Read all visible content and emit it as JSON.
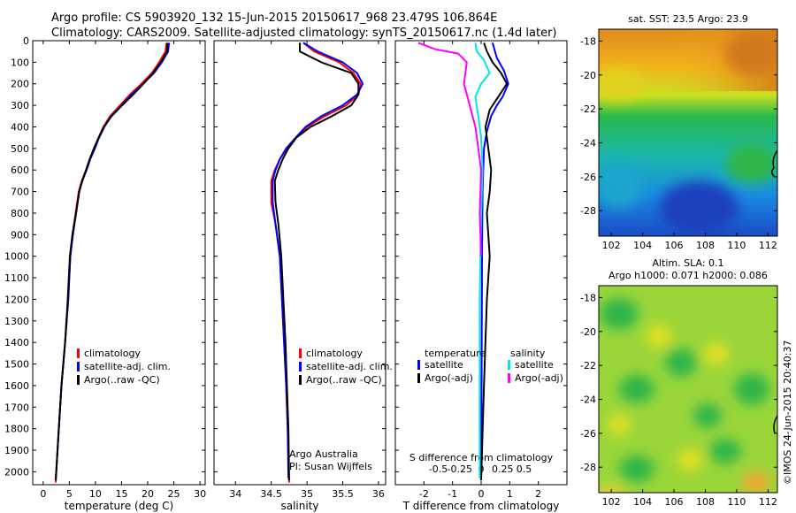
{
  "header": {
    "line1": "Argo profile: CS 5903920_132 15-Jun-2015 20150617_968 23.479S 106.864E",
    "line2": "Climatology: CARS2009. Satellite-adjusted climatology: synTS_20150617.nc (1.4d later)"
  },
  "colors": {
    "climatology": "#ff0000",
    "satellite": "#0000ff",
    "argo": "#000000",
    "sal_satellite": "#00e5e5",
    "sal_argo": "#ff00ff"
  },
  "chart_data": [
    {
      "id": "temp",
      "type": "line",
      "xlabel": "temperature (deg C)",
      "ylabel": "",
      "xlim": [
        -2,
        31
      ],
      "ylim": [
        0,
        2060
      ],
      "y_inverted": true,
      "x_ticks": [
        "0",
        "5",
        "10",
        "15",
        "20",
        "25",
        "30"
      ],
      "x_tick_values": [
        0,
        5,
        10,
        15,
        20,
        25,
        30
      ],
      "y_ticks": [
        "0",
        "100",
        "200",
        "300",
        "400",
        "500",
        "600",
        "700",
        "800",
        "900",
        "1000",
        "1100",
        "1200",
        "1300",
        "1400",
        "1500",
        "1600",
        "1700",
        "1800",
        "1900",
        "2000"
      ],
      "y_tick_values": [
        0,
        100,
        200,
        300,
        400,
        500,
        600,
        700,
        800,
        900,
        1000,
        1100,
        1200,
        1300,
        1400,
        1500,
        1600,
        1700,
        1800,
        1900,
        2000
      ],
      "legend": [
        "climatology",
        "satellite-adj. clim.",
        "Argo(..raw -QC)"
      ],
      "series": [
        {
          "name": "climatology",
          "color": "#ff0000",
          "x": [
            23.6,
            23.4,
            22.2,
            20.8,
            18.8,
            16.6,
            14.7,
            12.8,
            11.5,
            10.6,
            9.8,
            8.9,
            8.2,
            7.4,
            6.8,
            6.2,
            5.6,
            5.2,
            4.8,
            4.2,
            3.5,
            3.0,
            2.5,
            2.4
          ],
          "y": [
            10,
            50,
            100,
            150,
            200,
            250,
            300,
            350,
            400,
            450,
            500,
            550,
            600,
            650,
            700,
            800,
            900,
            1000,
            1200,
            1400,
            1600,
            1800,
            2000,
            2050
          ]
        },
        {
          "name": "satellite-adj. clim.",
          "color": "#0000ff",
          "x": [
            24.1,
            23.9,
            22.7,
            21.2,
            19.1,
            16.9,
            15.0,
            13.0,
            11.7,
            10.7,
            9.9,
            9.0,
            8.3,
            7.5,
            6.9,
            6.3,
            5.7,
            5.2,
            4.8,
            4.2,
            3.5,
            3.0,
            2.5,
            2.4
          ],
          "y": [
            10,
            50,
            100,
            150,
            200,
            250,
            300,
            350,
            400,
            450,
            500,
            550,
            600,
            650,
            700,
            800,
            900,
            1000,
            1200,
            1400,
            1600,
            1800,
            2000,
            2030
          ]
        },
        {
          "name": "Argo(..raw -QC)",
          "color": "#000000",
          "x": [
            23.8,
            23.7,
            22.5,
            21.0,
            19.2,
            17.2,
            15.1,
            13.1,
            11.6,
            10.6,
            9.7,
            8.9,
            8.2,
            7.5,
            6.9,
            6.3,
            5.6,
            5.1,
            4.7,
            4.2,
            3.5,
            3.0,
            2.5,
            2.4
          ],
          "y": [
            10,
            50,
            100,
            150,
            200,
            250,
            300,
            350,
            400,
            450,
            500,
            550,
            600,
            650,
            700,
            800,
            900,
            1000,
            1200,
            1400,
            1600,
            1800,
            2000,
            2040
          ]
        }
      ]
    },
    {
      "id": "sal",
      "type": "line",
      "xlabel": "salinity",
      "xlim": [
        33.7,
        36.1
      ],
      "ylim": [
        0,
        2060
      ],
      "y_inverted": true,
      "x_ticks": [
        "34",
        "34.5",
        "35",
        "35.5",
        "36"
      ],
      "x_tick_values": [
        34,
        34.5,
        35,
        35.5,
        36
      ],
      "legend": [
        "climatology",
        "satellite-adj. clim.",
        "Argo(..raw -QC)"
      ],
      "annotation": [
        "Argo Australia",
        "PI: Susan Wijffels"
      ],
      "series": [
        {
          "name": "climatology",
          "color": "#ff0000",
          "x": [
            34.95,
            35.1,
            35.45,
            35.65,
            35.75,
            35.72,
            35.55,
            35.25,
            35.0,
            34.85,
            34.72,
            34.62,
            34.55,
            34.5,
            34.5,
            34.56,
            34.62,
            34.65,
            34.68,
            34.71,
            34.73,
            34.75
          ],
          "y": [
            10,
            50,
            100,
            150,
            200,
            250,
            300,
            350,
            400,
            450,
            500,
            550,
            600,
            650,
            750,
            850,
            1000,
            1200,
            1400,
            1600,
            1800,
            2050
          ]
        },
        {
          "name": "satellite-adj. clim.",
          "color": "#0000ff",
          "x": [
            34.95,
            35.15,
            35.5,
            35.7,
            35.78,
            35.7,
            35.5,
            35.2,
            34.98,
            34.84,
            34.71,
            34.62,
            34.56,
            34.52,
            34.52,
            34.56,
            34.62,
            34.65,
            34.68,
            34.71,
            34.73,
            34.74
          ],
          "y": [
            10,
            50,
            100,
            150,
            200,
            250,
            300,
            350,
            400,
            450,
            500,
            550,
            600,
            650,
            750,
            850,
            1000,
            1200,
            1400,
            1600,
            1800,
            2030
          ]
        },
        {
          "name": "Argo(..raw -QC)",
          "color": "#000000",
          "x": [
            34.9,
            34.9,
            35.2,
            35.62,
            35.72,
            35.72,
            35.62,
            35.35,
            35.05,
            34.85,
            34.74,
            34.66,
            34.6,
            34.55,
            34.56,
            34.6,
            34.64,
            34.67,
            34.7,
            34.72,
            34.74,
            34.75
          ],
          "y": [
            10,
            50,
            100,
            150,
            200,
            250,
            300,
            350,
            400,
            450,
            500,
            550,
            600,
            650,
            750,
            850,
            1000,
            1200,
            1400,
            1600,
            1800,
            2040
          ]
        }
      ]
    },
    {
      "id": "diff",
      "type": "line",
      "xlabel": "T difference from climatology",
      "xlabel2": "S difference from climatology",
      "xlim": [
        -3.0,
        3.0
      ],
      "ylim": [
        0,
        2060
      ],
      "y_inverted": true,
      "x_ticks": [
        "-2",
        "-1",
        "0",
        "1",
        "2"
      ],
      "x_tick_values": [
        -2,
        -1,
        0,
        1,
        2
      ],
      "x2_ticks": [
        "-0.5",
        "-0.25",
        "0",
        "0.25",
        "0.5"
      ],
      "x2_tick_values": [
        -0.5,
        -0.25,
        0,
        0.25,
        0.5
      ],
      "legend_headers": [
        "temperature",
        "salinity"
      ],
      "legend": [
        "satellite",
        "Argo(-adj)",
        "satellite",
        "Argo(-adj)"
      ],
      "series": [
        {
          "name": "temperature satellite",
          "color": "#0000ff",
          "x": [
            0.4,
            0.55,
            0.8,
            0.95,
            0.75,
            0.55,
            0.35,
            0.2,
            0.1,
            0.05,
            0.03,
            0.02,
            0.0
          ],
          "y": [
            10,
            80,
            140,
            200,
            260,
            300,
            350,
            420,
            500,
            700,
            1000,
            1500,
            2030
          ]
        },
        {
          "name": "temperature Argo(-adj)",
          "color": "#000000",
          "x": [
            0.1,
            0.2,
            0.4,
            0.7,
            0.9,
            0.6,
            0.3,
            0.15,
            0.25,
            0.35,
            0.3,
            0.2,
            0.25,
            0.3,
            0.2,
            0.1,
            0.0
          ],
          "y": [
            10,
            50,
            100,
            150,
            200,
            260,
            320,
            400,
            500,
            600,
            700,
            800,
            900,
            1000,
            1200,
            1600,
            2040
          ]
        },
        {
          "name": "salinity satellite",
          "color": "#00e5e5",
          "x": [
            -0.2,
            -0.15,
            0.1,
            0.3,
            0.0,
            -0.2,
            -0.1,
            0.0,
            0.05,
            0.0,
            -0.05,
            -0.05,
            -0.05
          ],
          "y": [
            10,
            50,
            90,
            150,
            200,
            260,
            350,
            450,
            600,
            800,
            1200,
            1600,
            2030
          ]
        },
        {
          "name": "salinity Argo(-adj)",
          "color": "#ff00ff",
          "x": [
            -2.2,
            -1.6,
            -0.8,
            -0.5,
            -0.6,
            -0.4,
            -0.2,
            -0.1,
            0.0,
            -0.05,
            0.0
          ],
          "y": [
            10,
            40,
            60,
            100,
            200,
            300,
            400,
            500,
            600,
            800,
            1000
          ]
        }
      ]
    },
    {
      "id": "sst_map",
      "type": "heatmap",
      "title": "sat. SST: 23.5 Argo: 23.9",
      "x_ticks": [
        "102",
        "104",
        "106",
        "108",
        "110",
        "112"
      ],
      "x_tick_values": [
        102,
        104,
        106,
        108,
        110,
        112
      ],
      "y_ticks": [
        "-18",
        "-20",
        "-22",
        "-24",
        "-26",
        "-28"
      ],
      "y_tick_values": [
        -18,
        -20,
        -22,
        -24,
        -26,
        -28
      ],
      "xlim": [
        101.2,
        112.6
      ],
      "ylim": [
        -29.5,
        -17.3
      ]
    },
    {
      "id": "sla_map",
      "type": "heatmap",
      "title": "Altim. SLA: 0.1",
      "subtitle": "Argo h1000: 0.071 h2000: 0.086",
      "x_ticks": [
        "102",
        "104",
        "106",
        "108",
        "110",
        "112"
      ],
      "x_tick_values": [
        102,
        104,
        106,
        108,
        110,
        112
      ],
      "y_ticks": [
        "-18",
        "-20",
        "-22",
        "-24",
        "-26",
        "-28"
      ],
      "y_tick_values": [
        -18,
        -20,
        -22,
        -24,
        -26,
        -28
      ],
      "xlim": [
        101.2,
        112.6
      ],
      "ylim": [
        -29.5,
        -17.3
      ]
    }
  ],
  "footer": {
    "credit": "©IMOS 24-Jun-2015 20:40:37"
  }
}
